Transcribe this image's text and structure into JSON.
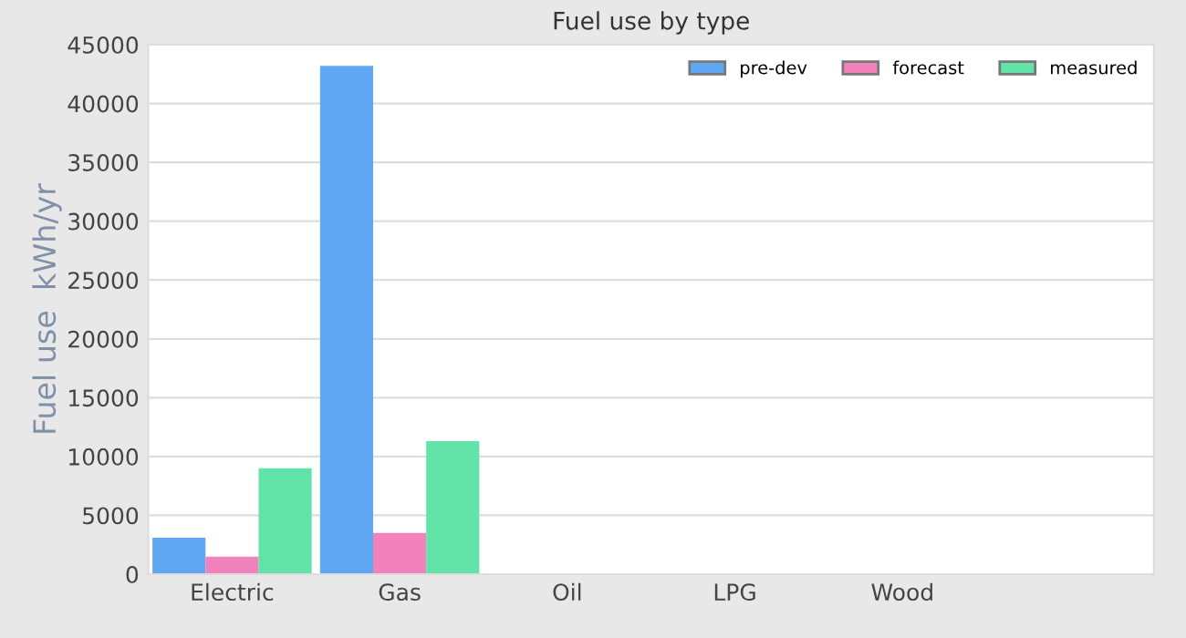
{
  "chart_data": {
    "type": "bar",
    "title": "Fuel use by type",
    "ylabel": "Fuel use  kWh/yr",
    "categories": [
      "Electric",
      "Gas",
      "Oil",
      "LPG",
      "Wood",
      null
    ],
    "series": [
      {
        "name": "pre-dev",
        "color": "#60a8f4",
        "values": [
          3100,
          43200,
          0,
          0,
          0,
          0
        ]
      },
      {
        "name": "forecast",
        "color": "#f282bc",
        "values": [
          1500,
          3500,
          0,
          0,
          0,
          0
        ]
      },
      {
        "name": "measured",
        "color": "#62e3a8",
        "values": [
          9000,
          11300,
          0,
          0,
          0,
          0
        ]
      }
    ],
    "ylim": [
      0,
      45000
    ],
    "yticks": [
      0,
      5000,
      10000,
      15000,
      20000,
      25000,
      30000,
      35000,
      40000,
      45000
    ],
    "grid": "y",
    "legend": "top right"
  }
}
